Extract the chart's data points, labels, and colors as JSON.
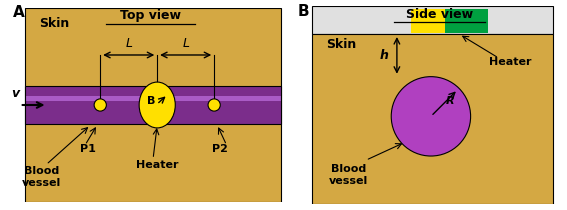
{
  "skin_color": "#D4A843",
  "vessel_color_dark": "#7B2D8B",
  "vessel_highlight": "#BF6FE0",
  "heater_color_top": "#FFE000",
  "sensor_color": "#FFE000",
  "circle_blood_vessel_color": "#B040C0",
  "heater_strip_yellow": "#FFE000",
  "heater_strip_green": "#00A040",
  "strip_bg": "#E0E0E0",
  "title_A": "Top view",
  "title_B": "Side view",
  "label_A": "A",
  "label_B": "B",
  "label_skin": "Skin",
  "label_heater": "Heater",
  "label_P1": "P1",
  "label_P2": "P2",
  "label_B_center": "B",
  "label_v": "v",
  "label_L": "L",
  "label_h": "h",
  "label_R": "R",
  "blood_line1": "Blood",
  "blood_line2": "vessel"
}
